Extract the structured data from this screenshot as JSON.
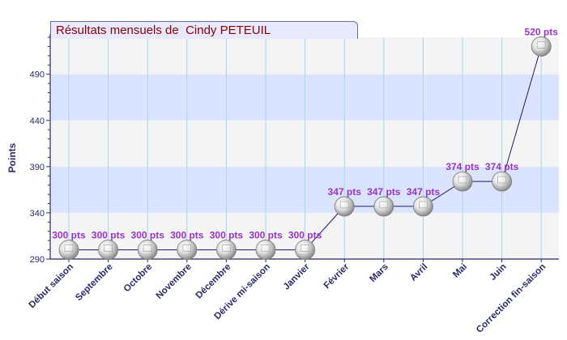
{
  "chart_data": {
    "type": "line",
    "title": "Résultats mensuels de  Cindy PETEUIL",
    "xlabel": "",
    "ylabel": "Points",
    "ylim": [
      290,
      530
    ],
    "yticks": [
      290,
      340,
      390,
      440,
      490
    ],
    "grid": true,
    "categories": [
      "Début saison",
      "Septembre",
      "Octobre",
      "Novembre",
      "Décembre",
      "Dérive mi-saison",
      "Janvier",
      "Février",
      "Mars",
      "Avril",
      "Mai",
      "Juin",
      "Correction fin-saison"
    ],
    "values": [
      300,
      300,
      300,
      300,
      300,
      300,
      300,
      347,
      347,
      347,
      374,
      374,
      520
    ],
    "value_labels": [
      "300 pts",
      "300 pts",
      "300 pts",
      "300 pts",
      "300 pts",
      "300 pts",
      "300 pts",
      "347 pts",
      "347 pts",
      "347 pts",
      "374 pts",
      "374 pts",
      "520 pts"
    ]
  },
  "colors": {
    "band_blue": "#dbe4ff",
    "band_gray": "#f4f4f4",
    "axis": "#2a2a6a",
    "line": "#1a1a6e",
    "value_label": "#9933cc",
    "tick_label": "#2a2a6a",
    "vgrid": "#a8d4ee"
  },
  "icons": {
    "marker": "silver-ball-icon"
  }
}
